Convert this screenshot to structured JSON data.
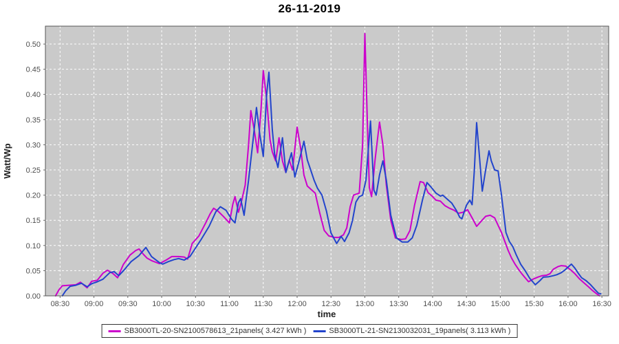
{
  "title": "26-11-2019",
  "chart_data": {
    "type": "line",
    "title": "26-11-2019",
    "xlabel": "time",
    "ylabel": "Watt/Wp",
    "grid": true,
    "legend_position": "bottom",
    "plot_bg_color": "#CACACA",
    "grid_color": "#FFFFFF",
    "plot_border_color": "#565656",
    "tick_color": "#666666",
    "tick_label_color": "#4D4D4D",
    "x_domain": [
      "08:17",
      "16:36"
    ],
    "ylim": [
      0,
      0.5356
    ],
    "x_ticks": [
      "08:30",
      "09:00",
      "09:30",
      "10:00",
      "10:30",
      "11:00",
      "11:30",
      "12:00",
      "12:30",
      "13:00",
      "13:30",
      "14:00",
      "14:30",
      "15:00",
      "15:30",
      "16:00",
      "16:30"
    ],
    "y_ticks": [
      0.0,
      0.05,
      0.1,
      0.15,
      0.2,
      0.25,
      0.3,
      0.35,
      0.4,
      0.45,
      0.5
    ],
    "series": [
      {
        "name": "SB3000TL-20-SN2100578613_21panels( 3.427 kWh )",
        "inverter": "SB3000TL-20-SN2100578613",
        "panels": 21,
        "energy_kwh": 3.427,
        "color": "#CC00CC",
        "points": [
          [
            "08:26",
            0
          ],
          [
            "08:29",
            0.012
          ],
          [
            "08:32",
            0.02
          ],
          [
            "08:38",
            0.021
          ],
          [
            "08:44",
            0.022
          ],
          [
            "08:48",
            0.027
          ],
          [
            "08:54",
            0.016
          ],
          [
            "08:58",
            0.029
          ],
          [
            "09:03",
            0.031
          ],
          [
            "09:08",
            0.045
          ],
          [
            "09:12",
            0.051
          ],
          [
            "09:17",
            0.044
          ],
          [
            "09:21",
            0.036
          ],
          [
            "09:26",
            0.062
          ],
          [
            "09:32",
            0.081
          ],
          [
            "09:37",
            0.09
          ],
          [
            "09:40",
            0.093
          ],
          [
            "09:44",
            0.082
          ],
          [
            "09:47",
            0.075
          ],
          [
            "09:51",
            0.07
          ],
          [
            "09:58",
            0.064
          ],
          [
            "10:04",
            0.071
          ],
          [
            "10:09",
            0.078
          ],
          [
            "10:15",
            0.078
          ],
          [
            "10:20",
            0.077
          ],
          [
            "10:23",
            0.073
          ],
          [
            "10:27",
            0.104
          ],
          [
            "10:33",
            0.119
          ],
          [
            "10:39",
            0.145
          ],
          [
            "10:43",
            0.163
          ],
          [
            "10:46",
            0.174
          ],
          [
            "10:50",
            0.168
          ],
          [
            "10:55",
            0.157
          ],
          [
            "11:00",
            0.145
          ],
          [
            "11:03",
            0.182
          ],
          [
            "11:05",
            0.197
          ],
          [
            "11:08",
            0.166
          ],
          [
            "11:11",
            0.19
          ],
          [
            "11:14",
            0.22
          ],
          [
            "11:17",
            0.3
          ],
          [
            "11:19",
            0.368
          ],
          [
            "11:22",
            0.33
          ],
          [
            "11:25",
            0.284
          ],
          [
            "11:28",
            0.37
          ],
          [
            "11:30",
            0.447
          ],
          [
            "11:33",
            0.39
          ],
          [
            "11:36",
            0.31
          ],
          [
            "11:38",
            0.286
          ],
          [
            "11:41",
            0.268
          ],
          [
            "11:44",
            0.314
          ],
          [
            "11:47",
            0.268
          ],
          [
            "11:50",
            0.245
          ],
          [
            "11:53",
            0.27
          ],
          [
            "11:56",
            0.25
          ],
          [
            "12:00",
            0.335
          ],
          [
            "12:03",
            0.295
          ],
          [
            "12:06",
            0.24
          ],
          [
            "12:09",
            0.218
          ],
          [
            "12:13",
            0.21
          ],
          [
            "12:16",
            0.204
          ],
          [
            "12:20",
            0.165
          ],
          [
            "12:24",
            0.13
          ],
          [
            "12:28",
            0.119
          ],
          [
            "12:33",
            0.116
          ],
          [
            "12:37",
            0.116
          ],
          [
            "12:41",
            0.121
          ],
          [
            "12:44",
            0.135
          ],
          [
            "12:47",
            0.177
          ],
          [
            "12:50",
            0.2
          ],
          [
            "12:55",
            0.204
          ],
          [
            "12:58",
            0.3
          ],
          [
            "13:00",
            0.521
          ],
          [
            "13:02",
            0.36
          ],
          [
            "13:04",
            0.215
          ],
          [
            "13:06",
            0.197
          ],
          [
            "13:09",
            0.27
          ],
          [
            "13:13",
            0.345
          ],
          [
            "13:16",
            0.3
          ],
          [
            "13:19",
            0.22
          ],
          [
            "13:23",
            0.15
          ],
          [
            "13:27",
            0.115
          ],
          [
            "13:32",
            0.112
          ],
          [
            "13:36",
            0.113
          ],
          [
            "13:40",
            0.13
          ],
          [
            "13:44",
            0.18
          ],
          [
            "13:49",
            0.227
          ],
          [
            "13:52",
            0.225
          ],
          [
            "13:56",
            0.205
          ],
          [
            "14:00",
            0.197
          ],
          [
            "14:03",
            0.19
          ],
          [
            "14:07",
            0.188
          ],
          [
            "14:11",
            0.179
          ],
          [
            "14:15",
            0.174
          ],
          [
            "14:19",
            0.17
          ],
          [
            "14:23",
            0.164
          ],
          [
            "14:27",
            0.166
          ],
          [
            "14:31",
            0.171
          ],
          [
            "14:35",
            0.155
          ],
          [
            "14:39",
            0.138
          ],
          [
            "14:43",
            0.148
          ],
          [
            "14:47",
            0.158
          ],
          [
            "14:51",
            0.16
          ],
          [
            "14:55",
            0.155
          ],
          [
            "14:58",
            0.14
          ],
          [
            "15:01",
            0.126
          ],
          [
            "15:04",
            0.108
          ],
          [
            "15:07",
            0.09
          ],
          [
            "15:10",
            0.075
          ],
          [
            "15:13",
            0.063
          ],
          [
            "15:16",
            0.053
          ],
          [
            "15:19",
            0.044
          ],
          [
            "15:22",
            0.036
          ],
          [
            "15:25",
            0.028
          ],
          [
            "15:29",
            0.033
          ],
          [
            "15:33",
            0.037
          ],
          [
            "15:37",
            0.04
          ],
          [
            "15:41",
            0.041
          ],
          [
            "15:44",
            0.044
          ],
          [
            "15:47",
            0.053
          ],
          [
            "15:51",
            0.058
          ],
          [
            "15:54",
            0.06
          ],
          [
            "15:58",
            0.059
          ],
          [
            "16:02",
            0.052
          ],
          [
            "16:06",
            0.044
          ],
          [
            "16:10",
            0.034
          ],
          [
            "16:14",
            0.026
          ],
          [
            "16:18",
            0.018
          ],
          [
            "16:22",
            0.01
          ],
          [
            "16:26",
            0.003
          ],
          [
            "16:28",
            0
          ]
        ]
      },
      {
        "name": "SB3000TL-21-SN2130032031_19panels( 3.113 kWh )",
        "inverter": "SB3000TL-21-SN2130032031",
        "panels": 19,
        "energy_kwh": 3.113,
        "color": "#2244CC",
        "points": [
          [
            "08:32",
            0
          ],
          [
            "08:35",
            0.01
          ],
          [
            "08:39",
            0.019
          ],
          [
            "08:44",
            0.021
          ],
          [
            "08:49",
            0.025
          ],
          [
            "08:54",
            0.018
          ],
          [
            "08:58",
            0.024
          ],
          [
            "09:03",
            0.028
          ],
          [
            "09:08",
            0.033
          ],
          [
            "09:14",
            0.046
          ],
          [
            "09:18",
            0.048
          ],
          [
            "09:22",
            0.04
          ],
          [
            "09:27",
            0.052
          ],
          [
            "09:33",
            0.068
          ],
          [
            "09:40",
            0.08
          ],
          [
            "09:46",
            0.096
          ],
          [
            "09:51",
            0.078
          ],
          [
            "09:58",
            0.066
          ],
          [
            "10:01",
            0.063
          ],
          [
            "10:06",
            0.068
          ],
          [
            "10:11",
            0.072
          ],
          [
            "10:15",
            0.074
          ],
          [
            "10:20",
            0.071
          ],
          [
            "10:25",
            0.078
          ],
          [
            "10:30",
            0.095
          ],
          [
            "10:35",
            0.112
          ],
          [
            "10:42",
            0.138
          ],
          [
            "10:48",
            0.167
          ],
          [
            "10:52",
            0.177
          ],
          [
            "10:57",
            0.17
          ],
          [
            "11:02",
            0.152
          ],
          [
            "11:05",
            0.145
          ],
          [
            "11:08",
            0.185
          ],
          [
            "11:10",
            0.193
          ],
          [
            "11:13",
            0.16
          ],
          [
            "11:17",
            0.23
          ],
          [
            "11:21",
            0.31
          ],
          [
            "11:24",
            0.374
          ],
          [
            "11:27",
            0.32
          ],
          [
            "11:30",
            0.277
          ],
          [
            "11:33",
            0.4
          ],
          [
            "11:35",
            0.444
          ],
          [
            "11:38",
            0.33
          ],
          [
            "11:40",
            0.282
          ],
          [
            "11:43",
            0.255
          ],
          [
            "11:47",
            0.314
          ],
          [
            "11:50",
            0.245
          ],
          [
            "11:55",
            0.284
          ],
          [
            "11:58",
            0.236
          ],
          [
            "12:02",
            0.27
          ],
          [
            "12:06",
            0.307
          ],
          [
            "12:09",
            0.27
          ],
          [
            "12:12",
            0.25
          ],
          [
            "12:15",
            0.23
          ],
          [
            "12:18",
            0.214
          ],
          [
            "12:22",
            0.2
          ],
          [
            "12:26",
            0.168
          ],
          [
            "12:30",
            0.125
          ],
          [
            "12:35",
            0.104
          ],
          [
            "12:39",
            0.118
          ],
          [
            "12:42",
            0.108
          ],
          [
            "12:46",
            0.125
          ],
          [
            "12:49",
            0.149
          ],
          [
            "12:52",
            0.186
          ],
          [
            "12:55",
            0.197
          ],
          [
            "12:58",
            0.2
          ],
          [
            "13:01",
            0.23
          ],
          [
            "13:05",
            0.347
          ],
          [
            "13:08",
            0.21
          ],
          [
            "13:10",
            0.2
          ],
          [
            "13:13",
            0.24
          ],
          [
            "13:16",
            0.268
          ],
          [
            "13:19",
            0.23
          ],
          [
            "13:23",
            0.16
          ],
          [
            "13:28",
            0.115
          ],
          [
            "13:33",
            0.107
          ],
          [
            "13:38",
            0.107
          ],
          [
            "13:42",
            0.115
          ],
          [
            "13:46",
            0.14
          ],
          [
            "13:51",
            0.19
          ],
          [
            "13:55",
            0.225
          ],
          [
            "13:59",
            0.215
          ],
          [
            "14:03",
            0.204
          ],
          [
            "14:07",
            0.198
          ],
          [
            "14:09",
            0.2
          ],
          [
            "14:13",
            0.192
          ],
          [
            "14:17",
            0.184
          ],
          [
            "14:21",
            0.17
          ],
          [
            "14:24",
            0.156
          ],
          [
            "14:26",
            0.153
          ],
          [
            "14:30",
            0.18
          ],
          [
            "14:33",
            0.19
          ],
          [
            "14:35",
            0.181
          ],
          [
            "14:37",
            0.25
          ],
          [
            "14:39",
            0.344
          ],
          [
            "14:41",
            0.29
          ],
          [
            "14:44",
            0.208
          ],
          [
            "14:47",
            0.25
          ],
          [
            "14:50",
            0.288
          ],
          [
            "14:52",
            0.268
          ],
          [
            "14:55",
            0.25
          ],
          [
            "14:58",
            0.248
          ],
          [
            "15:01",
            0.2
          ],
          [
            "15:03",
            0.163
          ],
          [
            "15:05",
            0.126
          ],
          [
            "15:08",
            0.108
          ],
          [
            "15:11",
            0.098
          ],
          [
            "15:14",
            0.082
          ],
          [
            "15:18",
            0.063
          ],
          [
            "15:22",
            0.05
          ],
          [
            "15:26",
            0.035
          ],
          [
            "15:31",
            0.022
          ],
          [
            "15:35",
            0.03
          ],
          [
            "15:38",
            0.037
          ],
          [
            "15:43",
            0.038
          ],
          [
            "15:47",
            0.04
          ],
          [
            "15:50",
            0.042
          ],
          [
            "15:54",
            0.046
          ],
          [
            "15:57",
            0.051
          ],
          [
            "16:00",
            0.057
          ],
          [
            "16:03",
            0.063
          ],
          [
            "16:06",
            0.055
          ],
          [
            "16:09",
            0.045
          ],
          [
            "16:12",
            0.036
          ],
          [
            "16:16",
            0.03
          ],
          [
            "16:20",
            0.022
          ],
          [
            "16:24",
            0.012
          ],
          [
            "16:27",
            0.005
          ],
          [
            "16:29",
            0.004
          ]
        ]
      }
    ]
  }
}
